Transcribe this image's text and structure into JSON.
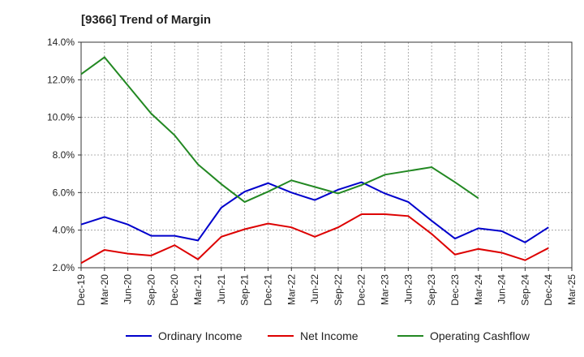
{
  "chart_data": {
    "type": "line",
    "title": "[9366]  Trend of Margin",
    "xlabel": "",
    "ylabel": "",
    "categories": [
      "Dec-19",
      "Mar-20",
      "Jun-20",
      "Sep-20",
      "Dec-20",
      "Mar-21",
      "Jun-21",
      "Sep-21",
      "Dec-21",
      "Mar-22",
      "Jun-22",
      "Sep-22",
      "Dec-22",
      "Mar-23",
      "Jun-23",
      "Sep-23",
      "Dec-23",
      "Mar-24",
      "Jun-24",
      "Sep-24",
      "Dec-24",
      "Mar-25"
    ],
    "ylim": [
      2.0,
      14.0
    ],
    "yticks": [
      "2.0%",
      "4.0%",
      "6.0%",
      "8.0%",
      "10.0%",
      "12.0%",
      "14.0%"
    ],
    "grid": true,
    "legend_position": "bottom",
    "series": [
      {
        "name": "Ordinary Income",
        "color": "#0000cc",
        "values": [
          4.3,
          4.7,
          4.3,
          3.7,
          3.7,
          3.45,
          5.2,
          6.05,
          6.5,
          6.0,
          5.6,
          6.15,
          6.55,
          5.95,
          5.5,
          4.5,
          3.55,
          4.1,
          3.95,
          3.35,
          4.15,
          null
        ]
      },
      {
        "name": "Net Income",
        "color": "#dd0000",
        "values": [
          2.25,
          2.95,
          2.75,
          2.65,
          3.2,
          2.45,
          3.65,
          4.05,
          4.35,
          4.15,
          3.65,
          4.15,
          4.85,
          4.85,
          4.75,
          3.8,
          2.7,
          3.0,
          2.8,
          2.4,
          3.05,
          null
        ]
      },
      {
        "name": "Operating Cashflow",
        "color": "#228822",
        "values": [
          12.3,
          13.2,
          11.7,
          10.2,
          9.05,
          7.5,
          6.45,
          5.5,
          6.05,
          6.65,
          6.3,
          5.95,
          6.4,
          6.95,
          7.15,
          7.35,
          6.55,
          5.7,
          null,
          null,
          null,
          null
        ]
      }
    ]
  }
}
